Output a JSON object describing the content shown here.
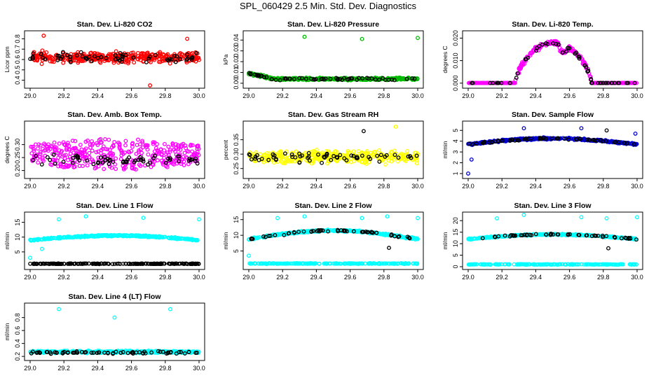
{
  "page_title": "SPL_060429  2.5 Min. Std. Dev. Diagnostics",
  "chart_data": [
    {
      "id": "li820-co2",
      "type": "scatter",
      "title": "Stan. Dev. Li-820 CO2",
      "ylabel": "Licor ppm",
      "xlim": [
        29.0,
        30.0
      ],
      "ylim": [
        0.35,
        0.85
      ],
      "xticks": [
        "29.0",
        "29.2",
        "29.4",
        "29.6",
        "29.8",
        "30.0"
      ],
      "yticks": [
        {
          "v": 0.4,
          "label": "0.4"
        },
        {
          "v": 0.5,
          "label": "0.5"
        },
        {
          "v": 0.6,
          "label": "0.6"
        },
        {
          "v": 0.7,
          "label": "0.7"
        },
        {
          "v": 0.8,
          "label": "0.8"
        }
      ],
      "series": [
        {
          "name": "all",
          "color": "#ff0000",
          "gen": {
            "mode": "noise",
            "n": 400,
            "base": 0.62,
            "amp": 0.07,
            "seed": 11
          }
        },
        {
          "name": "subset",
          "color": "#000000",
          "gen": {
            "mode": "noise",
            "n": 60,
            "base": 0.62,
            "amp": 0.07,
            "seed": 12
          }
        }
      ],
      "outliers": [
        {
          "x": 29.08,
          "y": 0.83,
          "color": "#ff0000"
        },
        {
          "x": 29.93,
          "y": 0.8,
          "color": "#ff0000"
        },
        {
          "x": 29.71,
          "y": 0.35,
          "color": "#ff0000"
        }
      ]
    },
    {
      "id": "li820-pressure",
      "type": "scatter",
      "title": "Stan. Dev. Li-820 Pressure",
      "ylabel": "kPa",
      "xlim": [
        29.0,
        30.0
      ],
      "ylim": [
        -0.002,
        0.046
      ],
      "xticks": [
        "29.0",
        "29.2",
        "29.4",
        "29.6",
        "29.8",
        "30.0"
      ],
      "yticks": [
        {
          "v": 0.0,
          "label": "0.00"
        },
        {
          "v": 0.01,
          "label": "0.01"
        },
        {
          "v": 0.02,
          "label": "0.02"
        },
        {
          "v": 0.03,
          "label": "0.03"
        },
        {
          "v": 0.04,
          "label": "0.04"
        }
      ],
      "series": [
        {
          "name": "all",
          "color": "#00bb00",
          "gen": {
            "mode": "decay",
            "n": 400,
            "base": 0.004,
            "amp": 0.0025,
            "peak": 0.009,
            "seed": 21
          }
        },
        {
          "name": "subset",
          "color": "#000000",
          "gen": {
            "mode": "decay",
            "n": 60,
            "base": 0.004,
            "amp": 0.0025,
            "peak": 0.009,
            "seed": 22
          }
        }
      ],
      "outliers": [
        {
          "x": 29.33,
          "y": 0.043,
          "color": "#00bb00"
        },
        {
          "x": 29.67,
          "y": 0.041,
          "color": "#00bb00"
        },
        {
          "x": 30.0,
          "y": 0.042,
          "color": "#00bb00"
        }
      ]
    },
    {
      "id": "li820-temp",
      "type": "scatter",
      "title": "Stan. Dev. Li-820 Temp.",
      "ylabel": "degrees C",
      "xlim": [
        29.0,
        30.0
      ],
      "ylim": [
        -0.001,
        0.022
      ],
      "xticks": [
        "29.0",
        "29.2",
        "29.4",
        "29.6",
        "29.8",
        "30.0"
      ],
      "yticks": [
        {
          "v": 0.0,
          "label": "0.000"
        },
        {
          "v": 0.01,
          "label": "0.010"
        },
        {
          "v": 0.02,
          "label": "0.020"
        }
      ],
      "series": [
        {
          "name": "all",
          "color": "#ff00ff",
          "gen": {
            "mode": "bump",
            "n": 400,
            "lo": 29.28,
            "hi": 29.73,
            "peak": 0.018,
            "amp": 0.0015,
            "seed": 31
          }
        },
        {
          "name": "subset",
          "color": "#000000",
          "gen": {
            "mode": "bump",
            "n": 60,
            "lo": 29.28,
            "hi": 29.73,
            "peak": 0.018,
            "amp": 0.0015,
            "seed": 32
          }
        }
      ],
      "outliers": []
    },
    {
      "id": "amb-box-temp",
      "type": "scatter",
      "title": "Stan. Dev. Amb. Box Temp.",
      "ylabel": "degrees C",
      "xlim": [
        29.0,
        30.0
      ],
      "ylim": [
        0.18,
        0.38
      ],
      "xticks": [
        "29.0",
        "29.2",
        "29.4",
        "29.6",
        "29.8",
        "30.0"
      ],
      "yticks": [
        {
          "v": 0.2,
          "label": "0.20"
        },
        {
          "v": 0.25,
          "label": "0.25"
        },
        {
          "v": 0.3,
          "label": "0.30"
        }
      ],
      "series": [
        {
          "name": "all",
          "color": "#ff00ff",
          "gen": {
            "mode": "wide",
            "n": 380,
            "base": 0.262,
            "amp": 0.06,
            "seed": 41
          }
        },
        {
          "name": "subset",
          "color": "#000000",
          "gen": {
            "mode": "noise",
            "n": 60,
            "base": 0.24,
            "amp": 0.025,
            "seed": 42
          }
        }
      ],
      "outliers": []
    },
    {
      "id": "gas-stream-rh",
      "type": "scatter",
      "title": "Stan. Dev. Gas Stream RH",
      "ylabel": "percent",
      "xlim": [
        29.0,
        30.0
      ],
      "ylim": [
        0.225,
        0.405
      ],
      "xticks": [
        "29.0",
        "29.2",
        "29.4",
        "29.6",
        "29.8",
        "30.0"
      ],
      "yticks": [
        {
          "v": 0.25,
          "label": "0.25"
        },
        {
          "v": 0.3,
          "label": "0.30"
        },
        {
          "v": 0.35,
          "label": "0.35"
        }
      ],
      "series": [
        {
          "name": "all",
          "color": "#ffff00",
          "gen": {
            "mode": "noise",
            "n": 380,
            "base": 0.29,
            "amp": 0.03,
            "seed": 51
          }
        },
        {
          "name": "subset",
          "color": "#000000",
          "gen": {
            "mode": "noise",
            "n": 60,
            "base": 0.29,
            "amp": 0.025,
            "seed": 52
          }
        }
      ],
      "outliers": [
        {
          "x": 29.68,
          "y": 0.38,
          "color": "#000000"
        },
        {
          "x": 29.87,
          "y": 0.395,
          "color": "#ffff00"
        }
      ]
    },
    {
      "id": "sample-flow",
      "type": "scatter",
      "title": "Stan. Dev. Sample Flow",
      "ylabel": "ml/min",
      "xlim": [
        29.0,
        30.0
      ],
      "ylim": [
        0.8,
        5.6
      ],
      "xticks": [
        "29.0",
        "29.2",
        "29.4",
        "29.6",
        "29.8",
        "30.0"
      ],
      "yticks": [
        {
          "v": 1,
          "label": "1"
        },
        {
          "v": 2,
          "label": "2"
        },
        {
          "v": 3,
          "label": "3"
        },
        {
          "v": 4,
          "label": "4"
        },
        {
          "v": 5,
          "label": "5"
        }
      ],
      "series": [
        {
          "name": "all",
          "color": "#0000cc",
          "gen": {
            "mode": "arch",
            "n": 380,
            "base": 3.7,
            "peak": 4.25,
            "amp": 0.12,
            "seed": 61
          }
        },
        {
          "name": "subset",
          "color": "#000000",
          "gen": {
            "mode": "arch",
            "n": 60,
            "base": 3.7,
            "peak": 4.25,
            "amp": 0.12,
            "seed": 62
          }
        }
      ],
      "outliers": [
        {
          "x": 29.33,
          "y": 5.2,
          "color": "#0000cc"
        },
        {
          "x": 29.67,
          "y": 5.2,
          "color": "#0000cc"
        },
        {
          "x": 29.0,
          "y": 1.0,
          "color": "#0000cc"
        },
        {
          "x": 29.02,
          "y": 2.3,
          "color": "#0000cc"
        },
        {
          "x": 29.99,
          "y": 4.7,
          "color": "#0000cc"
        },
        {
          "x": 29.82,
          "y": 5.0,
          "color": "#000000"
        }
      ]
    },
    {
      "id": "line1-flow",
      "type": "scatter",
      "title": "Stan. Dev. Line 1 Flow",
      "ylabel": "ml/min",
      "xlim": [
        29.0,
        30.0
      ],
      "ylim": [
        0.0,
        17.5
      ],
      "xticks": [
        "29.0",
        "29.2",
        "29.4",
        "29.6",
        "29.8",
        "30.0"
      ],
      "yticks": [
        {
          "v": 5,
          "label": "5"
        },
        {
          "v": 10,
          "label": "10"
        },
        {
          "v": 15,
          "label": "15"
        }
      ],
      "series": [
        {
          "name": "all",
          "color": "#00ffff",
          "gen": {
            "mode": "arch",
            "n": 350,
            "base": 9.0,
            "peak": 10.5,
            "amp": 0.35,
            "seed": 71
          }
        },
        {
          "name": "low",
          "color": "#000000",
          "gen": {
            "mode": "noise",
            "n": 200,
            "base": 1.0,
            "amp": 0.15,
            "seed": 72
          }
        }
      ],
      "outliers": [
        {
          "x": 29.17,
          "y": 16.0,
          "color": "#00ffff"
        },
        {
          "x": 29.33,
          "y": 17.0,
          "color": "#00ffff"
        },
        {
          "x": 29.67,
          "y": 16.5,
          "color": "#00ffff"
        },
        {
          "x": 30.0,
          "y": 16.0,
          "color": "#00ffff"
        },
        {
          "x": 29.0,
          "y": 3.0,
          "color": "#00ffff"
        },
        {
          "x": 29.07,
          "y": 6.0,
          "color": "#00ffff"
        }
      ]
    },
    {
      "id": "line2-flow",
      "type": "scatter",
      "title": "Stan. Dev. Line 2 Flow",
      "ylabel": "ml/min",
      "xlim": [
        29.0,
        30.0
      ],
      "ylim": [
        0.0,
        16.5
      ],
      "xticks": [
        "29.0",
        "29.2",
        "29.4",
        "29.6",
        "29.8",
        "30.0"
      ],
      "yticks": [
        {
          "v": 5,
          "label": "5"
        },
        {
          "v": 10,
          "label": "10"
        },
        {
          "v": 15,
          "label": "15"
        }
      ],
      "series": [
        {
          "name": "all",
          "color": "#00ffff",
          "gen": {
            "mode": "arch",
            "n": 350,
            "base": 8.8,
            "peak": 11.5,
            "amp": 0.4,
            "seed": 81
          }
        },
        {
          "name": "low",
          "color": "#00ffff",
          "gen": {
            "mode": "noise",
            "n": 200,
            "base": 1.0,
            "amp": 0.15,
            "seed": 82
          }
        },
        {
          "name": "subset",
          "color": "#000000",
          "gen": {
            "mode": "arch",
            "n": 55,
            "base": 8.8,
            "peak": 11.5,
            "amp": 0.4,
            "seed": 83
          }
        }
      ],
      "outliers": [
        {
          "x": 29.17,
          "y": 15.5,
          "color": "#00ffff"
        },
        {
          "x": 29.33,
          "y": 16.0,
          "color": "#00ffff"
        },
        {
          "x": 29.67,
          "y": 15.5,
          "color": "#00ffff"
        },
        {
          "x": 29.82,
          "y": 16.0,
          "color": "#00ffff"
        },
        {
          "x": 30.0,
          "y": 15.5,
          "color": "#00ffff"
        },
        {
          "x": 29.0,
          "y": 3.5,
          "color": "#00ffff"
        },
        {
          "x": 29.83,
          "y": 6.0,
          "color": "#000000"
        }
      ]
    },
    {
      "id": "line3-flow",
      "type": "scatter",
      "title": "Stan. Dev. Line 3 Flow",
      "ylabel": "ml/min",
      "xlim": [
        29.0,
        30.0
      ],
      "ylim": [
        0.0,
        22.5
      ],
      "xticks": [
        "29.0",
        "29.2",
        "29.4",
        "29.6",
        "29.8",
        "30.0"
      ],
      "yticks": [
        {
          "v": 0,
          "label": "0"
        },
        {
          "v": 5,
          "label": "5"
        },
        {
          "v": 10,
          "label": "10"
        },
        {
          "v": 15,
          "label": "15"
        },
        {
          "v": 20,
          "label": "20"
        }
      ],
      "series": [
        {
          "name": "all",
          "color": "#00ffff",
          "gen": {
            "mode": "arch",
            "n": 350,
            "base": 12.0,
            "peak": 14.0,
            "amp": 0.4,
            "seed": 91
          }
        },
        {
          "name": "low",
          "color": "#00ffff",
          "gen": {
            "mode": "noise",
            "n": 200,
            "base": 1.0,
            "amp": 0.15,
            "seed": 92
          }
        },
        {
          "name": "subset",
          "color": "#000000",
          "gen": {
            "mode": "arch",
            "n": 55,
            "base": 12.0,
            "peak": 14.0,
            "amp": 0.4,
            "seed": 93
          }
        }
      ],
      "outliers": [
        {
          "x": 29.17,
          "y": 21.0,
          "color": "#00ffff"
        },
        {
          "x": 29.33,
          "y": 22.5,
          "color": "#00ffff"
        },
        {
          "x": 29.67,
          "y": 21.5,
          "color": "#00ffff"
        },
        {
          "x": 29.82,
          "y": 21.0,
          "color": "#00ffff"
        },
        {
          "x": 30.0,
          "y": 21.5,
          "color": "#00ffff"
        },
        {
          "x": 29.83,
          "y": 8.0,
          "color": "#000000"
        }
      ]
    },
    {
      "id": "line4-flow",
      "type": "scatter",
      "title": "Stan. Dev. Line 4 (LT) Flow",
      "ylabel": "ml/min",
      "xlim": [
        29.0,
        30.0
      ],
      "ylim": [
        0.18,
        0.98
      ],
      "xticks": [
        "29.0",
        "29.2",
        "29.4",
        "29.6",
        "29.8",
        "30.0"
      ],
      "yticks": [
        {
          "v": 0.2,
          "label": "0.2"
        },
        {
          "v": 0.4,
          "label": "0.4"
        },
        {
          "v": 0.6,
          "label": "0.6"
        },
        {
          "v": 0.8,
          "label": "0.8"
        }
      ],
      "series": [
        {
          "name": "all",
          "color": "#00ffff",
          "gen": {
            "mode": "noise",
            "n": 380,
            "base": 0.27,
            "amp": 0.025,
            "seed": 101
          }
        },
        {
          "name": "subset",
          "color": "#000000",
          "gen": {
            "mode": "noise",
            "n": 70,
            "base": 0.26,
            "amp": 0.025,
            "seed": 102
          }
        }
      ],
      "outliers": [
        {
          "x": 29.17,
          "y": 0.93,
          "color": "#00ffff"
        },
        {
          "x": 29.83,
          "y": 0.93,
          "color": "#00ffff"
        },
        {
          "x": 29.5,
          "y": 0.8,
          "color": "#00ffff"
        }
      ]
    }
  ]
}
